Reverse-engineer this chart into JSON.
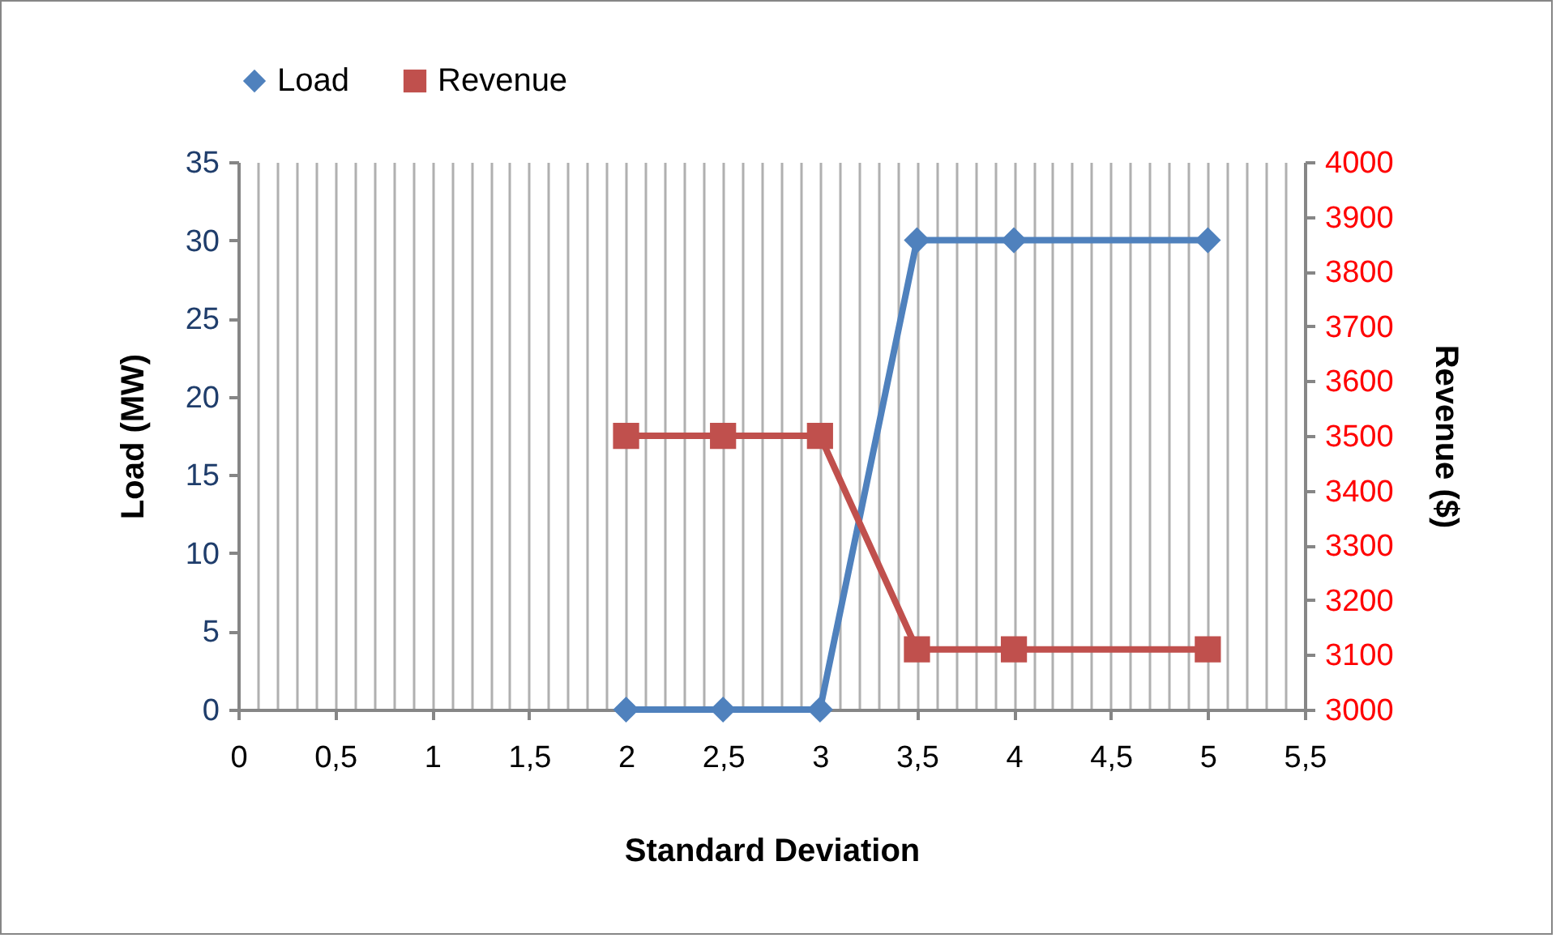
{
  "chart_data": {
    "type": "line",
    "xlabel": "Standard Deviation",
    "ylabel": "Load (MW)",
    "y2label": "Revenue ($)",
    "x": [
      2,
      2.5,
      3,
      3.5,
      4,
      5
    ],
    "series": [
      {
        "name": "Load",
        "color": "#4f81bd",
        "marker": "diamond",
        "values": [
          0,
          0,
          0,
          30,
          30,
          30
        ]
      },
      {
        "name": "Revenue",
        "color": "#c0504d",
        "marker": "square",
        "axis": "y2",
        "values": [
          3500,
          3500,
          3500,
          3110,
          3110,
          3110
        ]
      }
    ],
    "xlim": [
      0,
      5.5
    ],
    "xticks": [
      0,
      {
        "value": 0.1,
        "label": null
      },
      {
        "value": 0.2,
        "label": null
      },
      {
        "value": 0.3,
        "label": null
      },
      {
        "value": 0.4,
        "label": null
      },
      {
        "value": 0.5,
        "label": "0,5"
      },
      {
        "value": 0.6,
        "label": null
      },
      {
        "value": 0.7,
        "label": null
      },
      {
        "value": 0.8,
        "label": null
      },
      {
        "value": 0.9,
        "label": null
      },
      1,
      {
        "value": 1.1,
        "label": null
      },
      {
        "value": 1.2,
        "label": null
      },
      {
        "value": 1.3,
        "label": null
      },
      {
        "value": 1.4,
        "label": null
      },
      {
        "value": 1.5,
        "label": "1,5"
      },
      {
        "value": 1.6,
        "label": null
      },
      {
        "value": 1.7,
        "label": null
      },
      {
        "value": 1.8,
        "label": null
      },
      {
        "value": 1.9,
        "label": null
      },
      2,
      {
        "value": 2.1,
        "label": null
      },
      {
        "value": 2.2,
        "label": null
      },
      {
        "value": 2.3,
        "label": null
      },
      {
        "value": 2.4,
        "label": null
      },
      {
        "value": 2.5,
        "label": "2,5"
      },
      {
        "value": 2.6,
        "label": null
      },
      {
        "value": 2.7,
        "label": null
      },
      {
        "value": 2.8,
        "label": null
      },
      {
        "value": 2.9,
        "label": null
      },
      3,
      {
        "value": 3.1,
        "label": null
      },
      {
        "value": 3.2,
        "label": null
      },
      {
        "value": 3.3,
        "label": null
      },
      {
        "value": 3.4,
        "label": null
      },
      {
        "value": 3.5,
        "label": "3,5"
      },
      {
        "value": 3.6,
        "label": null
      },
      {
        "value": 3.7,
        "label": null
      },
      {
        "value": 3.8,
        "label": null
      },
      {
        "value": 3.9,
        "label": null
      },
      4,
      {
        "value": 4.1,
        "label": null
      },
      {
        "value": 4.2,
        "label": null
      },
      {
        "value": 4.3,
        "label": null
      },
      {
        "value": 4.4,
        "label": null
      },
      {
        "value": 4.5,
        "label": "4,5"
      },
      {
        "value": 4.6,
        "label": null
      },
      {
        "value": 4.7,
        "label": null
      },
      {
        "value": 4.8,
        "label": null
      },
      {
        "value": 4.9,
        "label": null
      },
      5,
      {
        "value": 5.1,
        "label": null
      },
      {
        "value": 5.2,
        "label": null
      },
      {
        "value": 5.3,
        "label": null
      },
      {
        "value": 5.4,
        "label": null
      },
      {
        "value": 5.5,
        "label": "5,5"
      }
    ],
    "ylim": [
      0,
      35
    ],
    "yticks": [
      0,
      5,
      10,
      15,
      20,
      25,
      30,
      35
    ],
    "y2lim": [
      3000,
      4000
    ],
    "y2ticks": [
      3000,
      3100,
      3200,
      3300,
      3400,
      3500,
      3600,
      3700,
      3800,
      3900,
      4000
    ],
    "grid": "x",
    "legend": "top"
  }
}
